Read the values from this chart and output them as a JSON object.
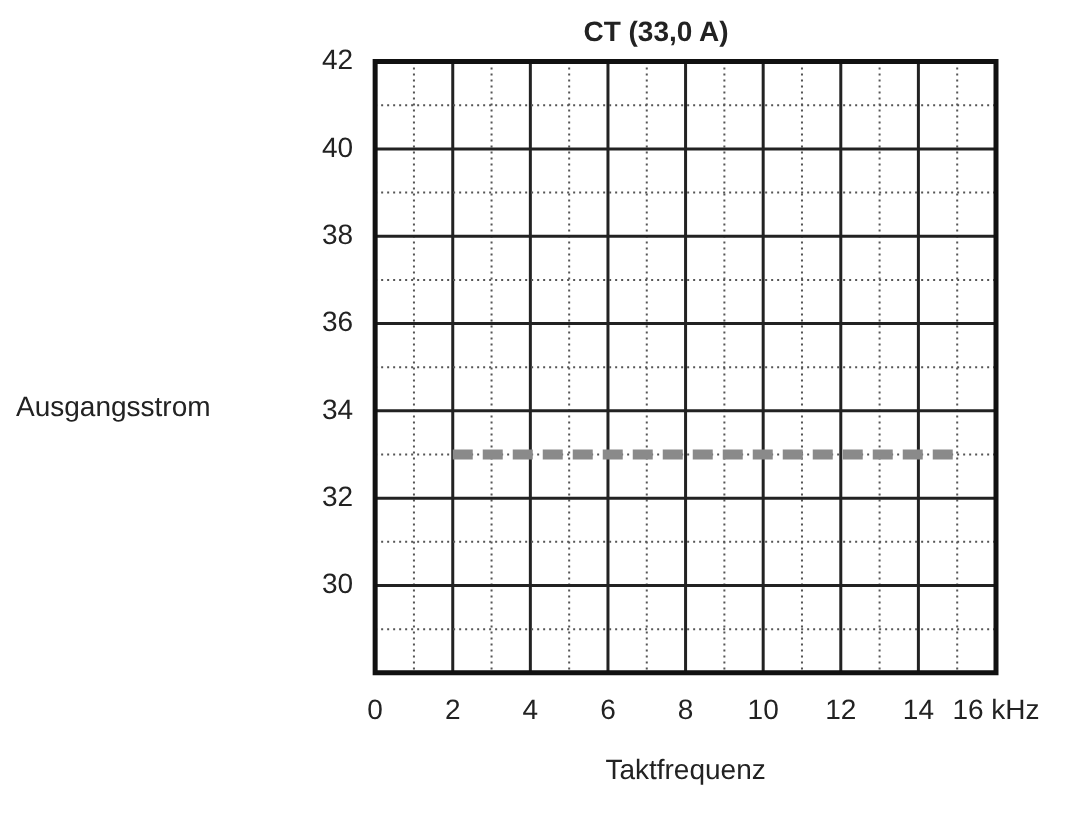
{
  "chart_data": {
    "type": "line",
    "title": "CT (33,0 A)",
    "xlabel": "Taktfrequenz",
    "ylabel": "Ausgangsstrom",
    "x": [
      2,
      15
    ],
    "series": [
      {
        "color": "#8a8a8a",
        "values": [
          33,
          33
        ]
      }
    ],
    "line_style": "dashed",
    "marker": "none",
    "grid": true,
    "legend": false,
    "xlim": [
      0,
      16
    ],
    "xticks": [
      0,
      {
        "value": 1,
        "label": null
      },
      2,
      {
        "value": 3,
        "label": null
      },
      4,
      {
        "value": 5,
        "label": null
      },
      6,
      {
        "value": 7,
        "label": null
      },
      8,
      {
        "value": 9,
        "label": null
      },
      10,
      {
        "value": 11,
        "label": null
      },
      12,
      {
        "value": 13,
        "label": null
      },
      14,
      {
        "value": 15,
        "label": null
      },
      {
        "value": 16,
        "label": "16 kHz"
      }
    ],
    "ylim": [
      28,
      42
    ],
    "yticks": [
      {
        "value": 28,
        "label": null
      },
      {
        "value": 29,
        "label": null
      },
      30,
      {
        "value": 31,
        "label": null
      },
      32,
      {
        "value": 33,
        "label": null
      },
      34,
      {
        "value": 35,
        "label": null
      },
      36,
      {
        "value": 37,
        "label": null
      },
      38,
      {
        "value": 39,
        "label": null
      },
      40,
      {
        "value": 41,
        "label": null
      },
      42
    ]
  }
}
